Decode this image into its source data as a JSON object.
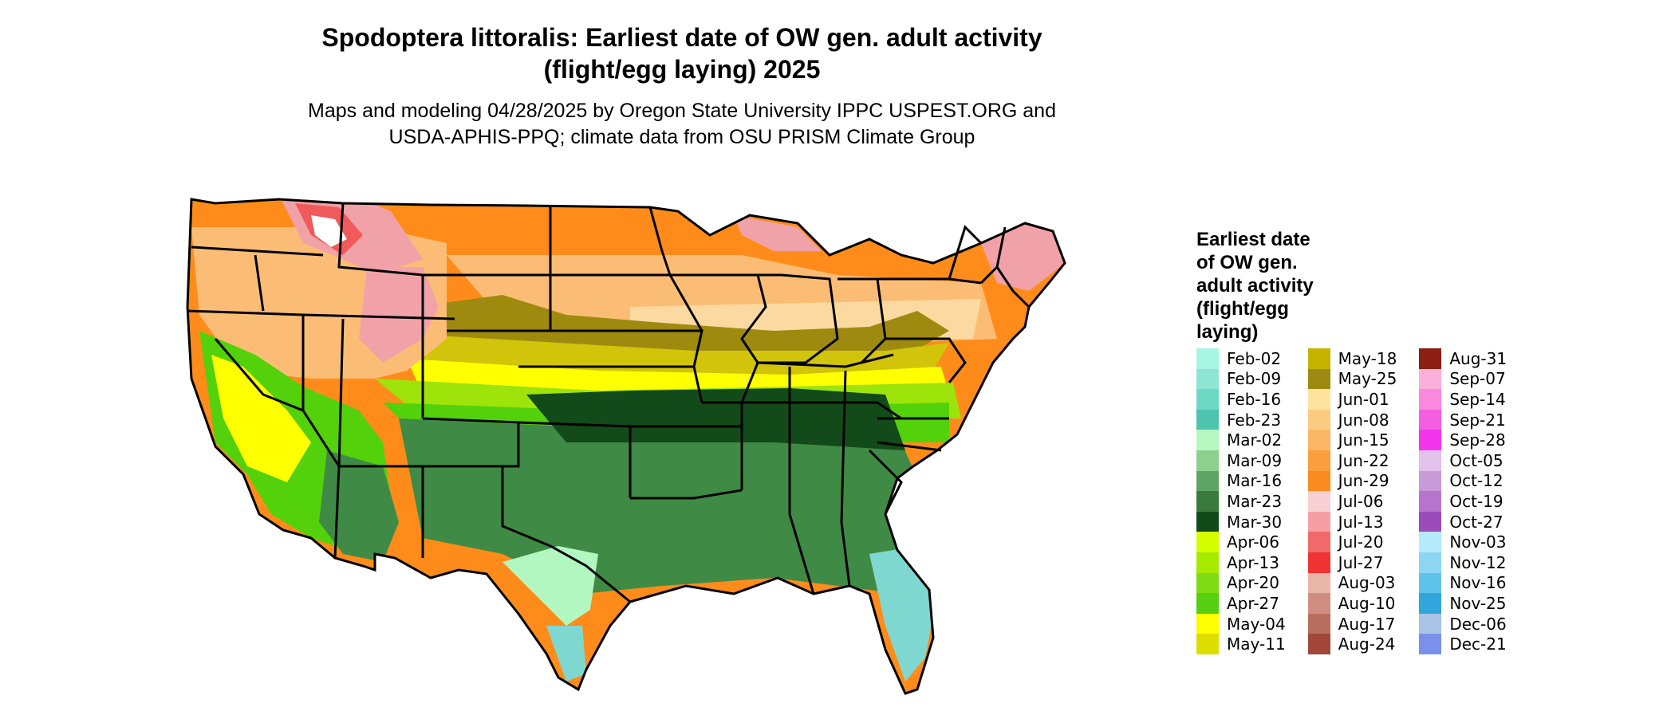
{
  "title": {
    "line1": "Spodoptera littoralis: Earliest date of OW gen. adult activity",
    "line2": "(flight/egg laying) 2025"
  },
  "subtitle": {
    "line1": "Maps and modeling 04/28/2025 by Oregon State University IPPC USPEST.ORG and",
    "line2": "USDA-APHIS-PPQ; climate data from OSU PRISM Climate Group"
  },
  "map": {
    "colors": {
      "outline": "#000000",
      "orange": "#ff8c1a",
      "peach": "#fbbd76",
      "light_peach": "#fcd9a0",
      "olive": "#9f8a10",
      "olive_yellow": "#d1c40a",
      "yellow": "#ffff00",
      "light_green": "#9ee30a",
      "green": "#53d10a",
      "mid_green": "#3f8a45",
      "dark_green": "#134a1a",
      "aqua": "#7fd8d0",
      "pale_green": "#b3f7c0",
      "pink": "#f1a2a8",
      "red": "#f05a5a",
      "white": "#ffffff"
    }
  },
  "legend": {
    "title": {
      "l1": "Earliest date",
      "l2": "of OW gen.",
      "l3": "adult activity",
      "l4": "(flight/egg",
      "l5": "laying)"
    },
    "columns": [
      [
        {
          "label": "Feb-02",
          "color": "#a8f5e3"
        },
        {
          "label": "Feb-09",
          "color": "#8ee6d2"
        },
        {
          "label": "Feb-16",
          "color": "#6dd8c4"
        },
        {
          "label": "Feb-23",
          "color": "#4ec4b0"
        },
        {
          "label": "Mar-02",
          "color": "#b6f7c0"
        },
        {
          "label": "Mar-09",
          "color": "#8ecf8e"
        },
        {
          "label": "Mar-16",
          "color": "#5ea565"
        },
        {
          "label": "Mar-23",
          "color": "#3b7a3d"
        },
        {
          "label": "Mar-30",
          "color": "#134a1a"
        },
        {
          "label": "Apr-06",
          "color": "#d4ff00"
        },
        {
          "label": "Apr-13",
          "color": "#a6ea00"
        },
        {
          "label": "Apr-20",
          "color": "#7fdb14"
        },
        {
          "label": "Apr-27",
          "color": "#55cf10"
        },
        {
          "label": "May-04",
          "color": "#ffff00"
        },
        {
          "label": "May-11",
          "color": "#dddd00"
        }
      ],
      [
        {
          "label": "May-18",
          "color": "#c4b400"
        },
        {
          "label": "May-25",
          "color": "#9e8a10"
        },
        {
          "label": "Jun-01",
          "color": "#fde39e"
        },
        {
          "label": "Jun-08",
          "color": "#fccb82"
        },
        {
          "label": "Jun-15",
          "color": "#fbb765"
        },
        {
          "label": "Jun-22",
          "color": "#fb9f3e"
        },
        {
          "label": "Jun-29",
          "color": "#fa8b1e"
        },
        {
          "label": "Jul-06",
          "color": "#f8cfd2"
        },
        {
          "label": "Jul-13",
          "color": "#f59fa4"
        },
        {
          "label": "Jul-20",
          "color": "#f06a6a"
        },
        {
          "label": "Jul-27",
          "color": "#f03434"
        },
        {
          "label": "Aug-03",
          "color": "#e8b6a8"
        },
        {
          "label": "Aug-10",
          "color": "#d08e82"
        },
        {
          "label": "Aug-17",
          "color": "#b86e5e"
        },
        {
          "label": "Aug-24",
          "color": "#a3473a"
        }
      ],
      [
        {
          "label": "Aug-31",
          "color": "#8b1f13"
        },
        {
          "label": "Sep-07",
          "color": "#fbb0dc"
        },
        {
          "label": "Sep-14",
          "color": "#f988de"
        },
        {
          "label": "Sep-21",
          "color": "#f45ee0"
        },
        {
          "label": "Sep-28",
          "color": "#f035ea"
        },
        {
          "label": "Oct-05",
          "color": "#e2c2ea"
        },
        {
          "label": "Oct-12",
          "color": "#c89ad7"
        },
        {
          "label": "Oct-19",
          "color": "#b575cc"
        },
        {
          "label": "Oct-27",
          "color": "#9c4bbb"
        },
        {
          "label": "Nov-03",
          "color": "#b5e9fb"
        },
        {
          "label": "Nov-12",
          "color": "#8dd6f3"
        },
        {
          "label": "Nov-16",
          "color": "#5ec3ea"
        },
        {
          "label": "Nov-25",
          "color": "#30a6dd"
        },
        {
          "label": "Dec-06",
          "color": "#a9c3e6"
        },
        {
          "label": "Dec-21",
          "color": "#7a90ea"
        }
      ]
    ]
  }
}
